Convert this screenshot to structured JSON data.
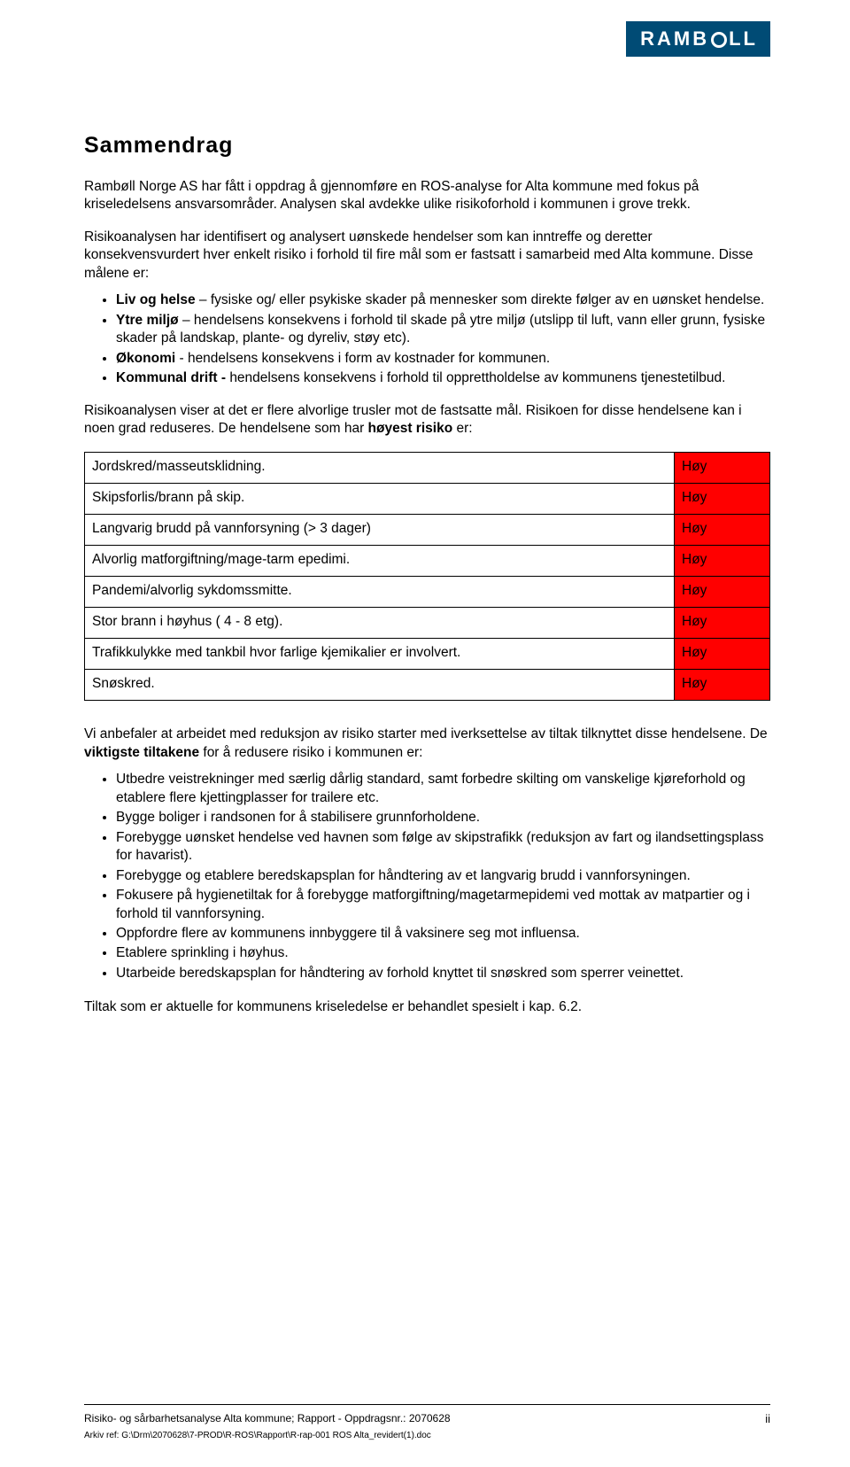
{
  "logo": {
    "brand": "RAMBOLL"
  },
  "title": "Sammendrag",
  "para1": "Rambøll Norge AS har fått i oppdrag å gjennomføre en ROS-analyse for Alta kommune med fokus på kriseledelsens ansvarsområder. Analysen skal avdekke ulike risikoforhold i kommunen i grove trekk.",
  "para2": "Risikoanalysen har identifisert og analysert uønskede hendelser som kan inntreffe og deretter konsekvensvurdert hver enkelt risiko i forhold til fire mål som er fastsatt i samarbeid med Alta kommune. Disse målene er:",
  "goals": [
    {
      "lead": "Liv og helse",
      "text": " – fysiske og/ eller psykiske skader på mennesker som direkte følger av en uønsket hendelse."
    },
    {
      "lead": "Ytre miljø",
      "text": " – hendelsens konsekvens i forhold til skade på ytre miljø (utslipp til luft, vann eller grunn, fysiske skader på landskap, plante- og dyreliv, støy etc)."
    },
    {
      "lead": "Økonomi",
      "text": " - hendelsens konsekvens i form av kostnader for kommunen."
    },
    {
      "lead": "Kommunal drift - ",
      "text": "hendelsens konsekvens i forhold til opprettholdelse av kommunens tjenestetilbud."
    }
  ],
  "para3_a": "Risikoanalysen viser at det er flere alvorlige trusler mot de fastsatte mål. Risikoen for disse hendelsene kan i noen grad reduseres. De hendelsene som har ",
  "para3_b": "høyest risiko",
  "para3_c": " er:",
  "risk_table": {
    "level_color": "#ff0000",
    "rows": [
      {
        "desc": "Jordskred/masseutsklidning.",
        "level": "Høy"
      },
      {
        "desc": "Skipsforlis/brann på skip.",
        "level": "Høy"
      },
      {
        "desc": "Langvarig brudd på vannforsyning (> 3 dager)",
        "level": "Høy"
      },
      {
        "desc": "Alvorlig matforgiftning/mage-tarm epedimi.",
        "level": "Høy"
      },
      {
        "desc": "Pandemi/alvorlig sykdomssmitte.",
        "level": "Høy"
      },
      {
        "desc": "Stor brann i høyhus ( 4 - 8 etg).",
        "level": "Høy"
      },
      {
        "desc": "Trafikkulykke med tankbil hvor farlige kjemikalier er involvert.",
        "level": "Høy"
      },
      {
        "desc": "Snøskred.",
        "level": "Høy"
      }
    ]
  },
  "para4_a": "Vi anbefaler at arbeidet med reduksjon av risiko starter med iverksettelse av tiltak tilknyttet disse hendelsene. De ",
  "para4_b": "viktigste tiltakene",
  "para4_c": " for å redusere risiko i kommunen er:",
  "actions": [
    "Utbedre veistrekninger med særlig dårlig standard, samt forbedre skilting om vanskelige kjøreforhold og etablere flere kjettingplasser for trailere etc.",
    "Bygge boliger i randsonen for å stabilisere grunnforholdene.",
    "Forebygge uønsket hendelse ved havnen som følge av skipstrafikk (reduksjon av fart og ilandsettingsplass for havarist).",
    "Forebygge og etablere beredskapsplan for håndtering av et langvarig brudd i vannforsyningen.",
    "Fokusere på hygienetiltak for å forebygge matforgiftning/magetarmepidemi ved mottak av matpartier og i forhold til vannforsyning.",
    "Oppfordre flere av kommunens innbyggere til å vaksinere seg mot influensa.",
    "Etablere sprinkling i høyhus.",
    "Utarbeide beredskapsplan for håndtering av forhold knyttet til snøskred som sperrer veinettet."
  ],
  "para5": "Tiltak som er aktuelle for kommunens kriseledelse er behandlet spesielt i kap. 6.2.",
  "footer": {
    "left": "Risiko- og sårbarhetsanalyse Alta kommune; Rapport - Oppdragsnr.: 2070628",
    "archive": "Arkiv ref: G:\\Drm\\2070628\\7-PROD\\R-ROS\\Rapport\\R-rap-001 ROS Alta_revidert(1).doc",
    "page": "ii"
  }
}
